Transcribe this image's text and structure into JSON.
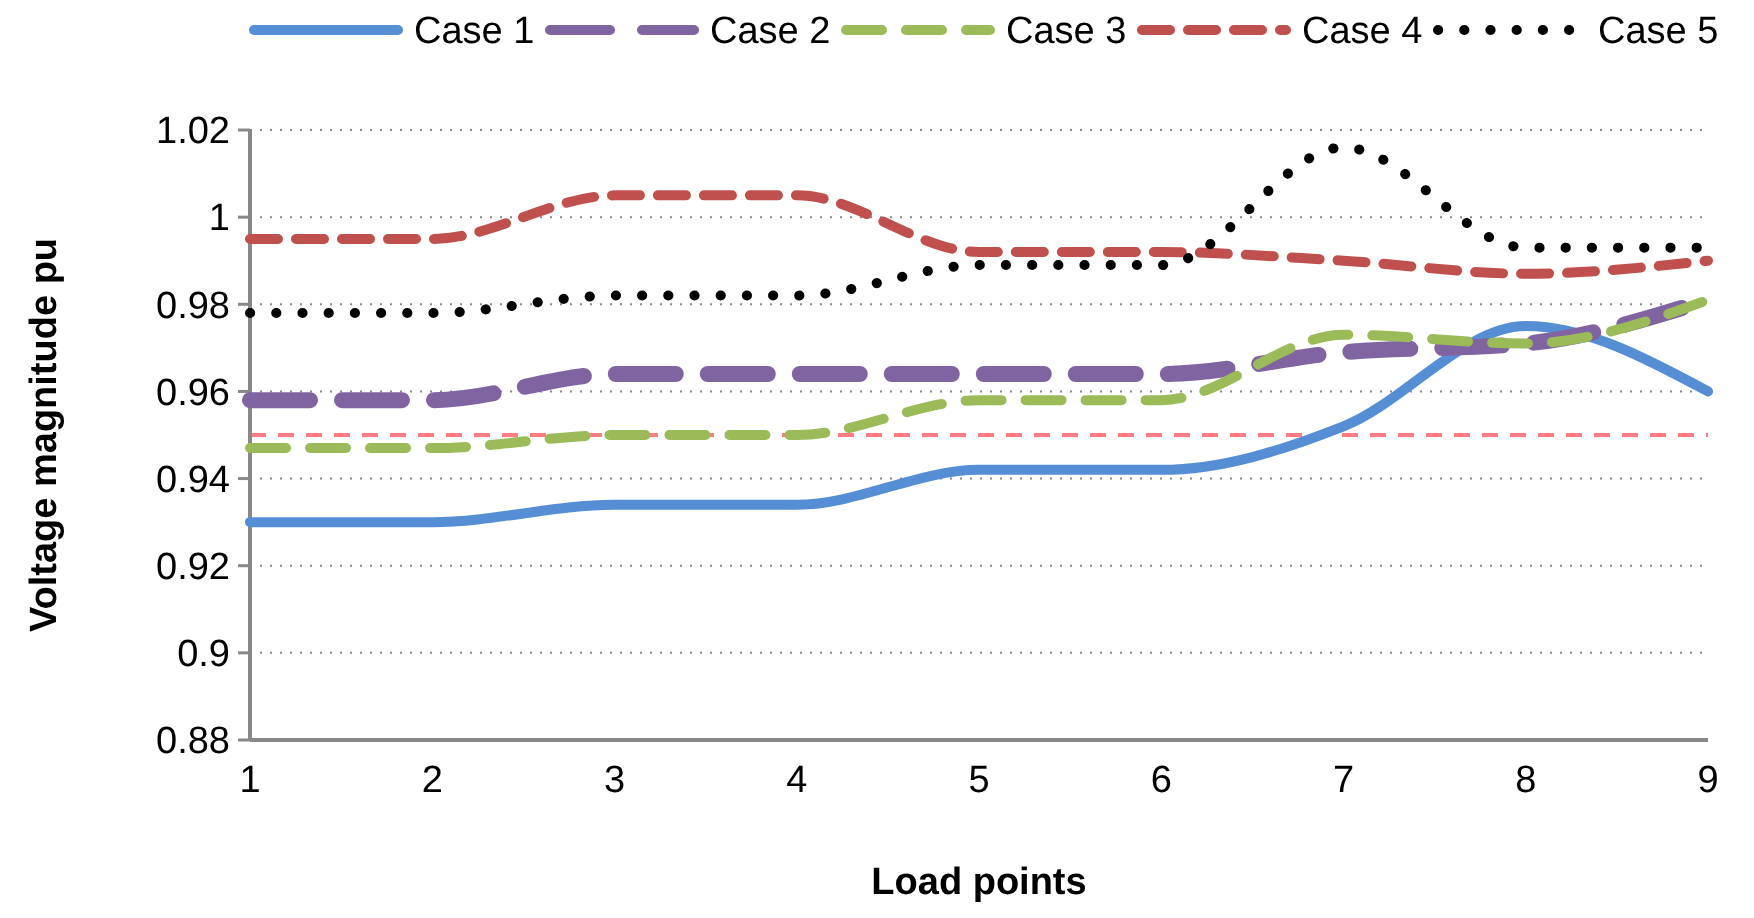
{
  "chart_data": {
    "type": "line",
    "xlabel": "Load points",
    "ylabel": "Voltage magnitude pu",
    "categories": [
      "1",
      "2",
      "3",
      "4",
      "5",
      "6",
      "7",
      "8",
      "9"
    ],
    "series": [
      {
        "name": "Case 1",
        "color": "#558ed5",
        "line_style": "solid",
        "values": [
          0.93,
          0.93,
          0.934,
          0.934,
          0.942,
          0.942,
          0.952,
          0.975,
          0.96
        ]
      },
      {
        "name": "Case 2",
        "color": "#8064a2",
        "line_style": "dashed",
        "values": [
          0.958,
          0.958,
          0.964,
          0.964,
          0.964,
          0.964,
          0.969,
          0.971,
          0.981
        ]
      },
      {
        "name": "Case 3",
        "color": "#9bbb59",
        "line_style": "dashed",
        "values": [
          0.947,
          0.947,
          0.95,
          0.95,
          0.958,
          0.958,
          0.973,
          0.971,
          0.981
        ]
      },
      {
        "name": "Case 4",
        "color": "#c0504d",
        "line_style": "dashed",
        "values": [
          0.995,
          0.995,
          1.005,
          1.005,
          0.992,
          0.992,
          0.99,
          0.987,
          0.99
        ]
      },
      {
        "name": "Case 5",
        "color": "#000000",
        "line_style": "dotted",
        "values": [
          0.978,
          0.978,
          0.982,
          0.982,
          0.989,
          0.989,
          1.016,
          0.993,
          0.993
        ]
      }
    ],
    "ylim": [
      0.88,
      1.02
    ],
    "yticks": [
      0.88,
      0.9,
      0.92,
      0.94,
      0.96,
      0.98,
      1,
      1.02
    ],
    "ref_lines": [
      {
        "axis": "y",
        "value": 0.95,
        "color": "#ff7c80",
        "line_style": "dashed"
      }
    ],
    "grid": "y",
    "legend": "top",
    "marker": "none"
  }
}
